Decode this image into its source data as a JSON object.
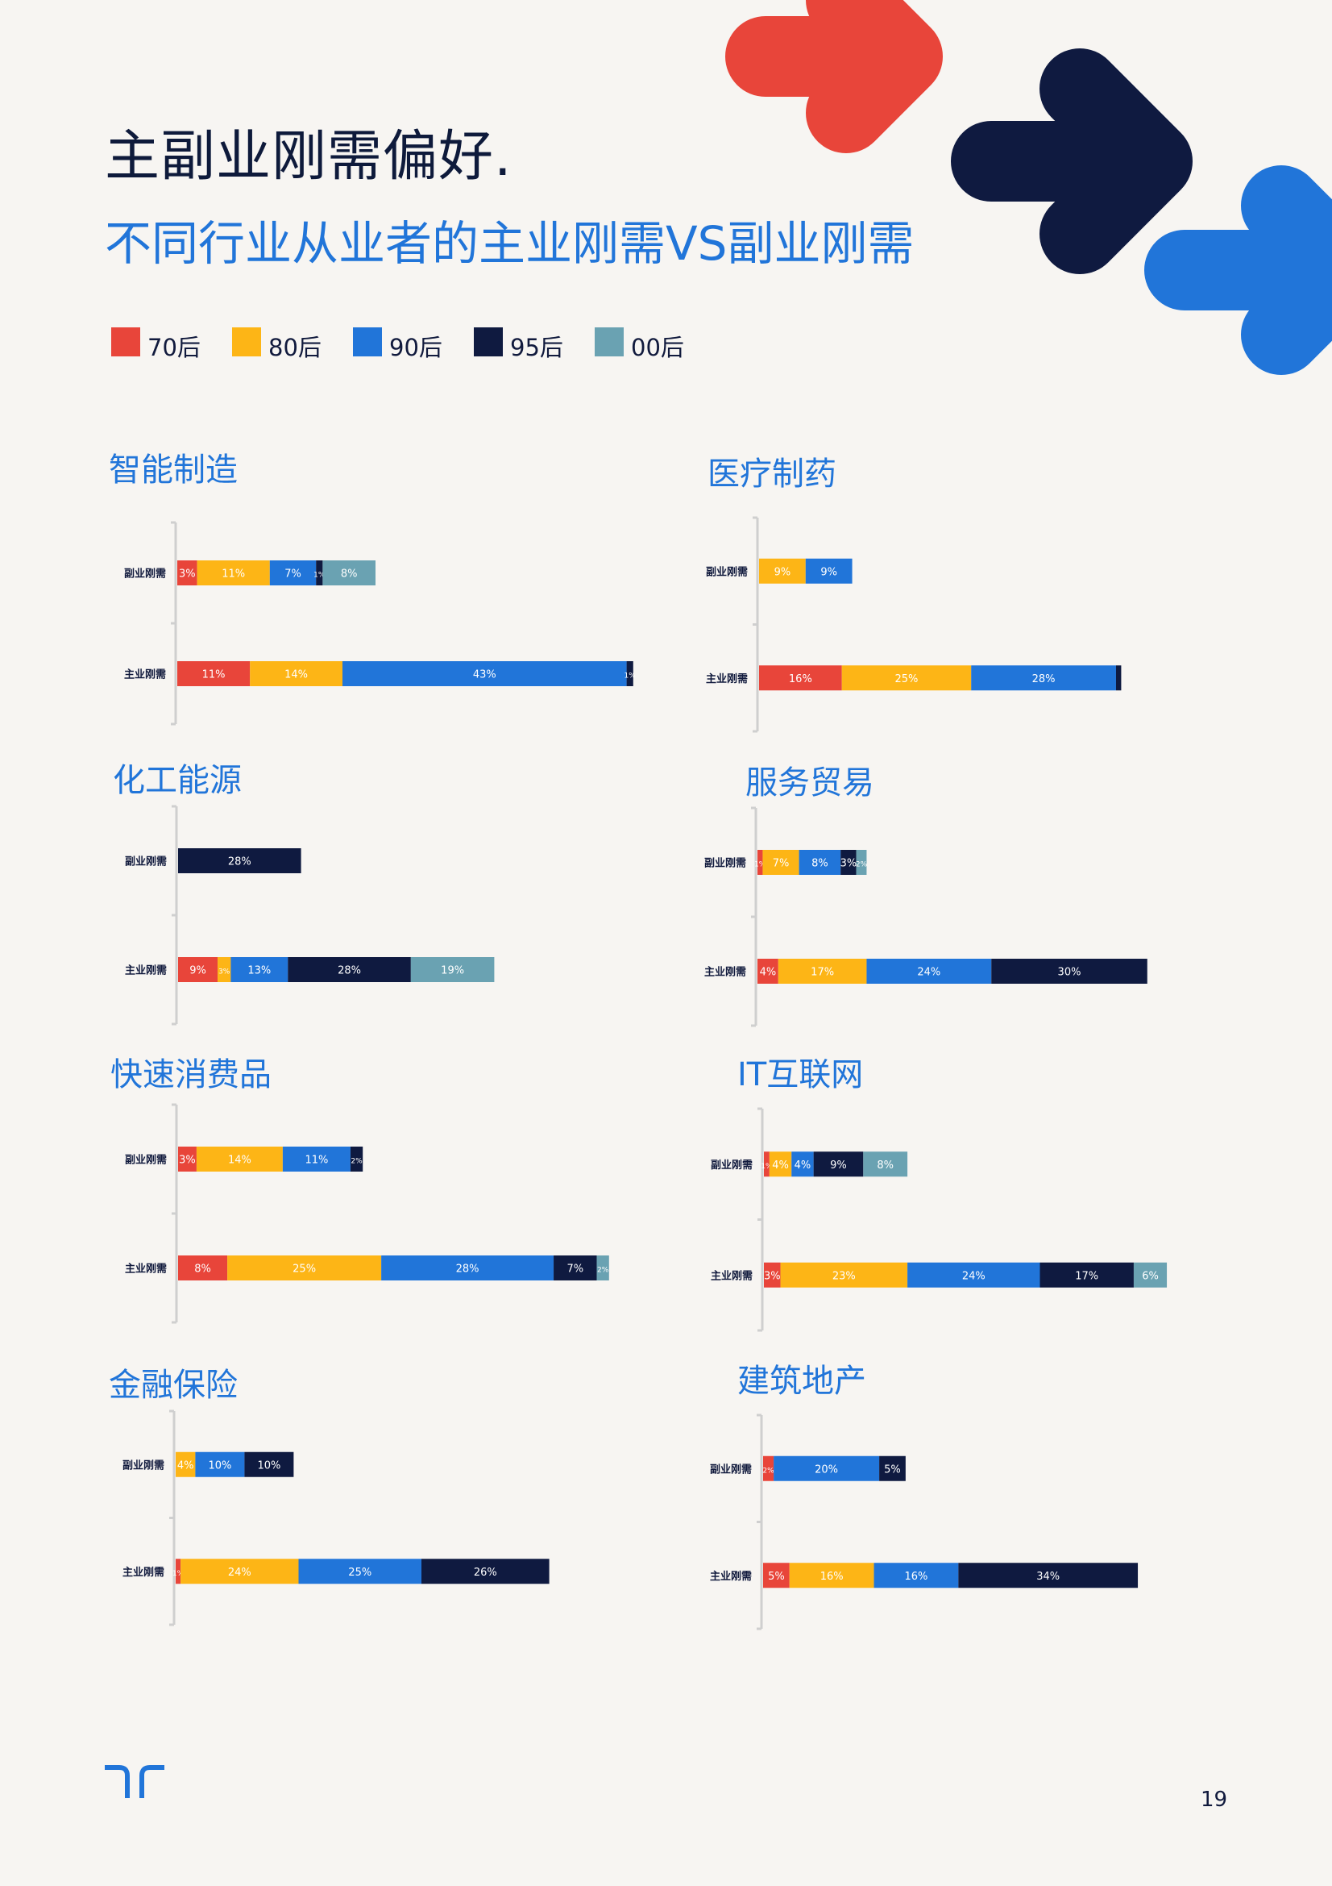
{
  "header": {
    "title": "主副业刚需偏好.",
    "subtitle": "不同行业从业者的主业刚需VS副业刚需"
  },
  "legend": [
    {
      "label": "70后",
      "color": "#e8453a"
    },
    {
      "label": "80后",
      "color": "#fdb516"
    },
    {
      "label": "90后",
      "color": "#2175d9"
    },
    {
      "label": "95后",
      "color": "#0f1a40"
    },
    {
      "label": "00后",
      "color": "#6aa2b2"
    }
  ],
  "footer": {
    "page_number": "19"
  },
  "chart_data": [
    {
      "type": "bar",
      "orientation": "horizontal",
      "stacked": true,
      "title": "智能制造",
      "categories": [
        "副业刚需",
        "主业刚需"
      ],
      "series": [
        {
          "name": "70后",
          "values": [
            3,
            11
          ],
          "labels": [
            "3%",
            "11%"
          ]
        },
        {
          "name": "80后",
          "values": [
            11,
            14
          ],
          "labels": [
            "11%",
            "14%"
          ]
        },
        {
          "name": "90后",
          "values": [
            7,
            43
          ],
          "labels": [
            "7%",
            "43%"
          ]
        },
        {
          "name": "95后",
          "values": [
            1,
            1
          ],
          "labels": [
            "1%",
            "1%"
          ]
        },
        {
          "name": "00后",
          "values": [
            8,
            0
          ],
          "labels": [
            "8%",
            ""
          ]
        }
      ]
    },
    {
      "type": "bar",
      "orientation": "horizontal",
      "stacked": true,
      "title": "医疗制药",
      "categories": [
        "副业刚需",
        "主业刚需"
      ],
      "series": [
        {
          "name": "70后",
          "values": [
            0,
            16
          ],
          "labels": [
            "",
            "16%"
          ]
        },
        {
          "name": "80后",
          "values": [
            9,
            25
          ],
          "labels": [
            "9%",
            "25%"
          ]
        },
        {
          "name": "90后",
          "values": [
            9,
            28
          ],
          "labels": [
            "9%",
            "28%"
          ]
        },
        {
          "name": "95后",
          "values": [
            0,
            1
          ],
          "labels": [
            "",
            ""
          ]
        },
        {
          "name": "00后",
          "values": [
            0,
            0
          ],
          "labels": [
            "",
            ""
          ]
        }
      ]
    },
    {
      "type": "bar",
      "orientation": "horizontal",
      "stacked": true,
      "title": "化工能源",
      "categories": [
        "副业刚需",
        "主业刚需"
      ],
      "series": [
        {
          "name": "70后",
          "values": [
            0,
            9
          ],
          "labels": [
            "",
            "9%"
          ]
        },
        {
          "name": "80后",
          "values": [
            0,
            3
          ],
          "labels": [
            "",
            "3%"
          ]
        },
        {
          "name": "90后",
          "values": [
            0,
            13
          ],
          "labels": [
            "",
            "13%"
          ]
        },
        {
          "name": "95后",
          "values": [
            28,
            28
          ],
          "labels": [
            "28%",
            "28%"
          ]
        },
        {
          "name": "00后",
          "values": [
            0,
            19
          ],
          "labels": [
            "",
            "19%"
          ]
        }
      ]
    },
    {
      "type": "bar",
      "orientation": "horizontal",
      "stacked": true,
      "title": "服务贸易",
      "categories": [
        "副业刚需",
        "主业刚需"
      ],
      "series": [
        {
          "name": "70后",
          "values": [
            1,
            4
          ],
          "labels": [
            "1%",
            "4%"
          ]
        },
        {
          "name": "80后",
          "values": [
            7,
            17
          ],
          "labels": [
            "7%",
            "17%"
          ]
        },
        {
          "name": "90后",
          "values": [
            8,
            24
          ],
          "labels": [
            "8%",
            "24%"
          ]
        },
        {
          "name": "95后",
          "values": [
            3,
            30
          ],
          "labels": [
            "3%",
            "30%"
          ]
        },
        {
          "name": "00后",
          "values": [
            2,
            0
          ],
          "labels": [
            "2%",
            ""
          ]
        }
      ]
    },
    {
      "type": "bar",
      "orientation": "horizontal",
      "stacked": true,
      "title": "快速消费品",
      "categories": [
        "副业刚需",
        "主业刚需"
      ],
      "series": [
        {
          "name": "70后",
          "values": [
            3,
            8
          ],
          "labels": [
            "3%",
            "8%"
          ]
        },
        {
          "name": "80后",
          "values": [
            14,
            25
          ],
          "labels": [
            "14%",
            "25%"
          ]
        },
        {
          "name": "90后",
          "values": [
            11,
            28
          ],
          "labels": [
            "11%",
            "28%"
          ]
        },
        {
          "name": "95后",
          "values": [
            2,
            7
          ],
          "labels": [
            "2%",
            "7%"
          ]
        },
        {
          "name": "00后",
          "values": [
            0,
            2
          ],
          "labels": [
            "",
            "2%"
          ]
        }
      ]
    },
    {
      "type": "bar",
      "orientation": "horizontal",
      "stacked": true,
      "title": "IT互联网",
      "categories": [
        "副业刚需",
        "主业刚需"
      ],
      "series": [
        {
          "name": "70后",
          "values": [
            1,
            3
          ],
          "labels": [
            "1%",
            "3%"
          ]
        },
        {
          "name": "80后",
          "values": [
            4,
            23
          ],
          "labels": [
            "4%",
            "23%"
          ]
        },
        {
          "name": "90后",
          "values": [
            4,
            24
          ],
          "labels": [
            "4%",
            "24%"
          ]
        },
        {
          "name": "95后",
          "values": [
            9,
            17
          ],
          "labels": [
            "9%",
            "17%"
          ]
        },
        {
          "name": "00后",
          "values": [
            8,
            6
          ],
          "labels": [
            "8%",
            "6%"
          ]
        }
      ]
    },
    {
      "type": "bar",
      "orientation": "horizontal",
      "stacked": true,
      "title": "金融保险",
      "categories": [
        "副业刚需",
        "主业刚需"
      ],
      "series": [
        {
          "name": "70后",
          "values": [
            0,
            1
          ],
          "labels": [
            "",
            "1%"
          ]
        },
        {
          "name": "80后",
          "values": [
            4,
            24
          ],
          "labels": [
            "4%",
            "24%"
          ]
        },
        {
          "name": "90后",
          "values": [
            10,
            25
          ],
          "labels": [
            "10%",
            "25%"
          ]
        },
        {
          "name": "95后",
          "values": [
            10,
            26
          ],
          "labels": [
            "10%",
            "26%"
          ]
        },
        {
          "name": "00后",
          "values": [
            0,
            0
          ],
          "labels": [
            "",
            ""
          ]
        }
      ]
    },
    {
      "type": "bar",
      "orientation": "horizontal",
      "stacked": true,
      "title": "建筑地产",
      "categories": [
        "副业刚需",
        "主业刚需"
      ],
      "series": [
        {
          "name": "70后",
          "values": [
            2,
            5
          ],
          "labels": [
            "2%",
            "5%"
          ]
        },
        {
          "name": "80后",
          "values": [
            0,
            16
          ],
          "labels": [
            "",
            "16%"
          ]
        },
        {
          "name": "90后",
          "values": [
            20,
            16
          ],
          "labels": [
            "20%",
            "16%"
          ]
        },
        {
          "name": "95后",
          "values": [
            5,
            34
          ],
          "labels": [
            "5%",
            "34%"
          ]
        },
        {
          "name": "00后",
          "values": [
            0,
            0
          ],
          "labels": [
            "",
            ""
          ]
        }
      ]
    }
  ]
}
